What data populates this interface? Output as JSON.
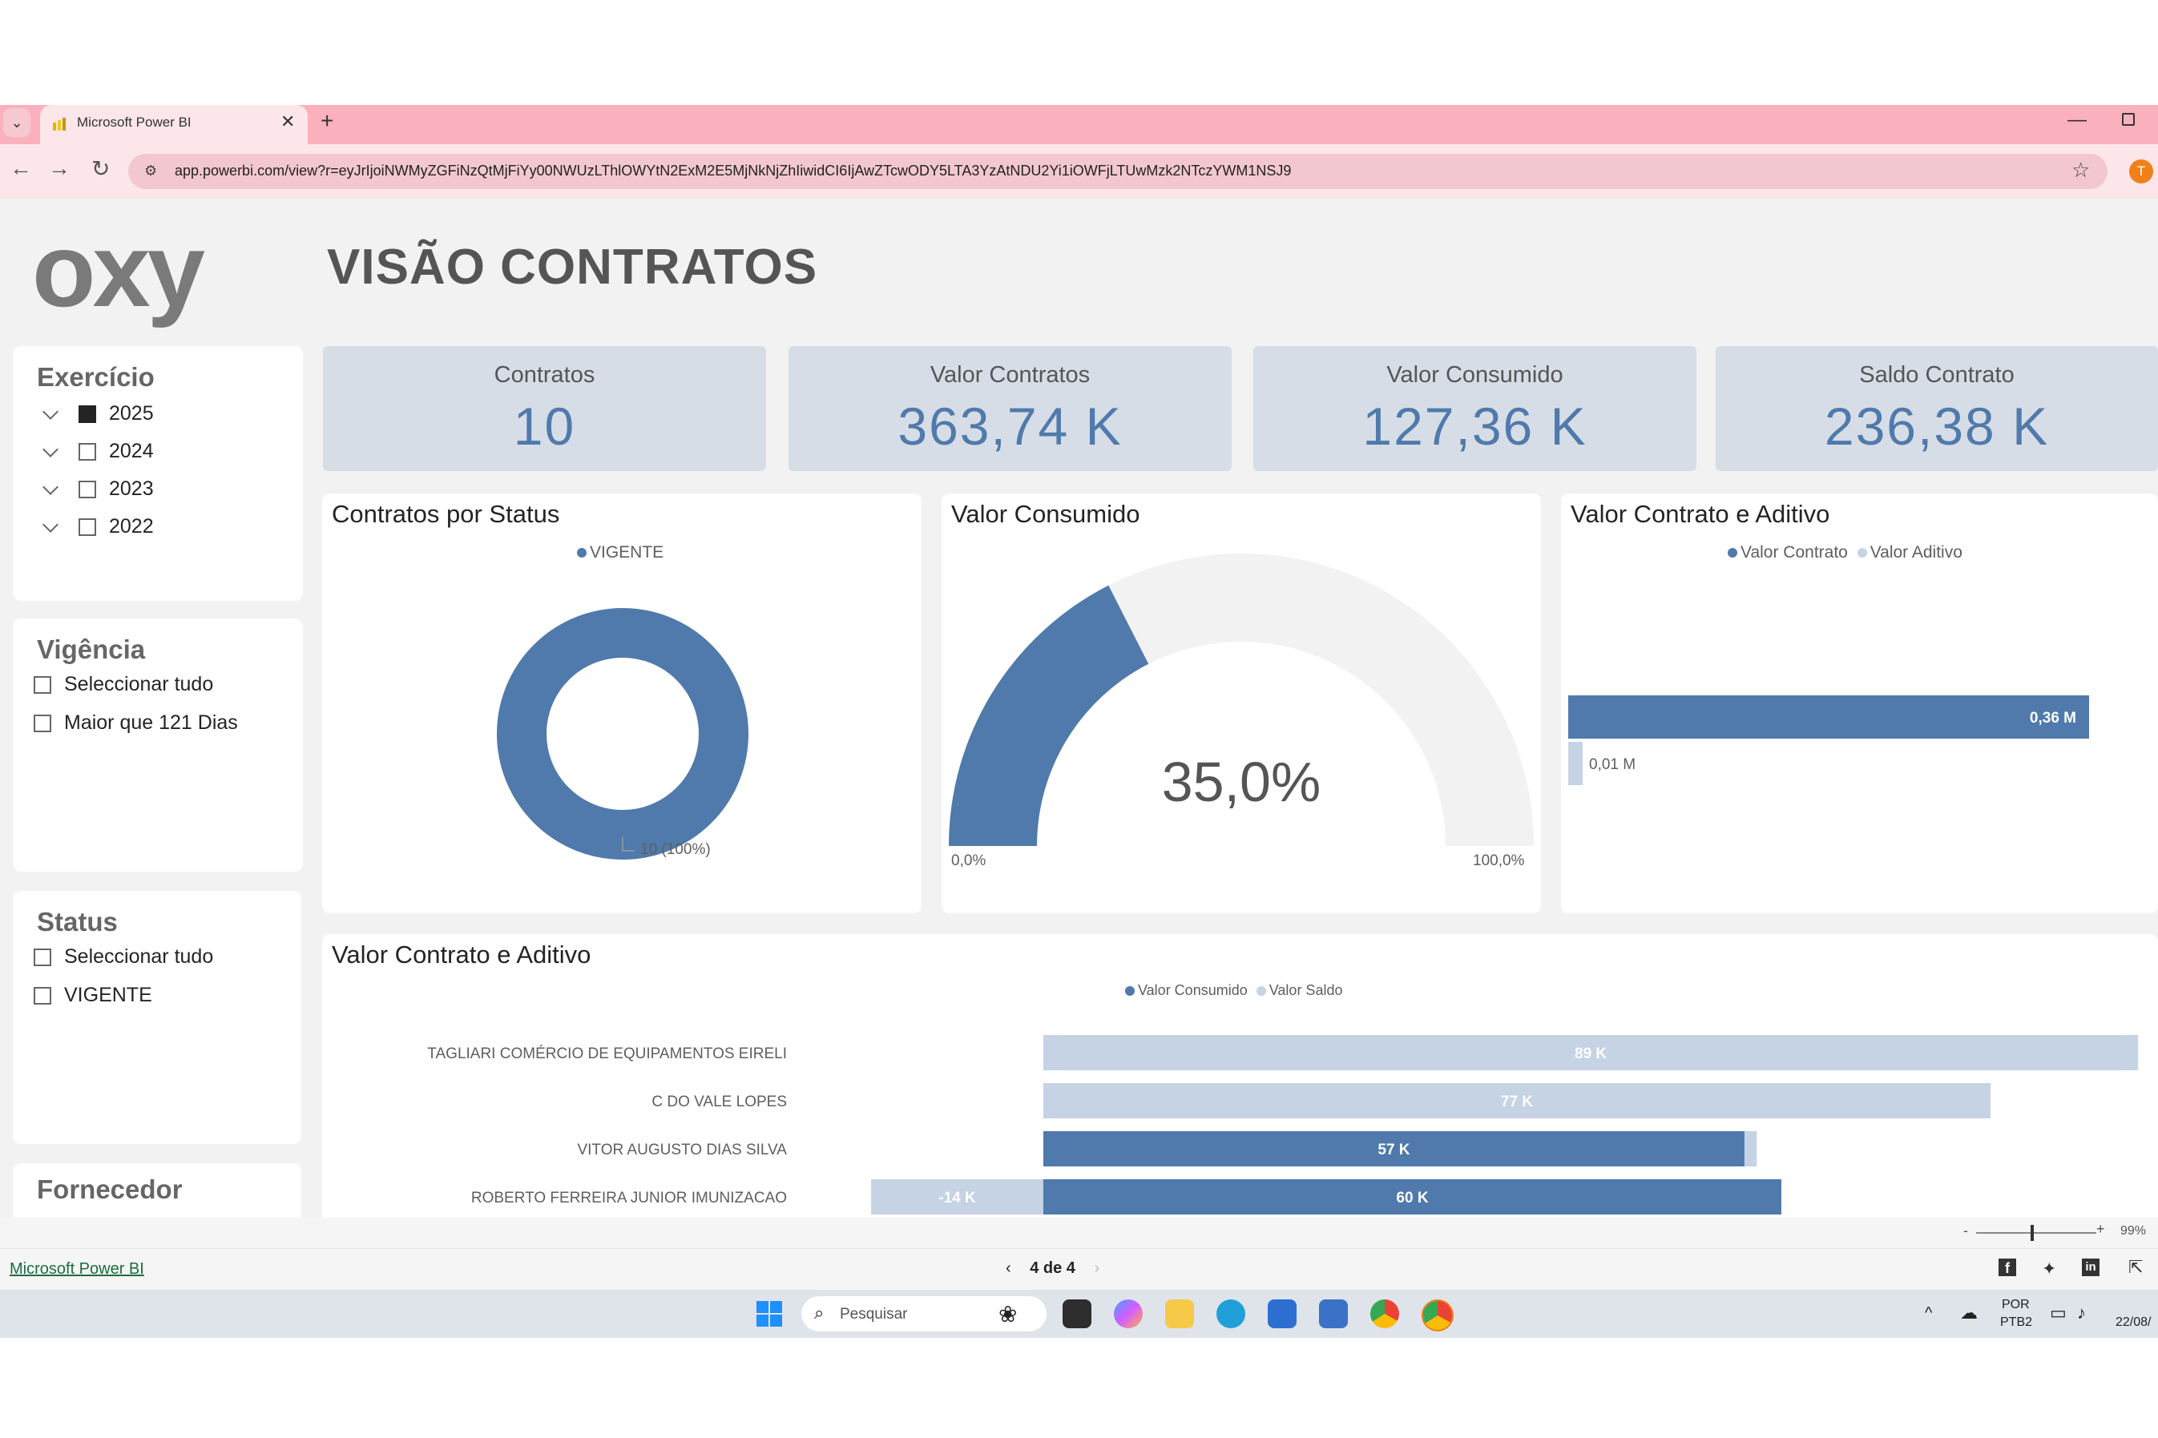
{
  "browser": {
    "tab_title": "Microsoft Power BI",
    "url": "app.powerbi.com/view?r=eyJrIjoiNWMyZGFiNzQtMjFiYy00NWUzLThlOWYtN2ExM2E5MjNkNjZhIiwidCI6IjAwZTcwODY5LTA3YzAtNDU2Yi1iOWFjLTUwMzk2NTczYWM1NSJ9",
    "profile_initial": "T"
  },
  "report": {
    "logo": "oxy",
    "title": "VISÃO CONTRATOS",
    "slicers": {
      "exercicio": {
        "title": "Exercício",
        "items": [
          {
            "label": "2025",
            "checked": true
          },
          {
            "label": "2024",
            "checked": false
          },
          {
            "label": "2023",
            "checked": false
          },
          {
            "label": "2022",
            "checked": false
          }
        ]
      },
      "vigencia": {
        "title": "Vigência",
        "items": [
          {
            "label": "Seleccionar tudo"
          },
          {
            "label": "Maior que 121 Dias"
          }
        ]
      },
      "status": {
        "title": "Status",
        "items": [
          {
            "label": "Seleccionar tudo"
          },
          {
            "label": "VIGENTE"
          }
        ]
      },
      "fornecedor": {
        "title": "Fornecedor"
      }
    },
    "kpis": [
      {
        "label": "Contratos",
        "value": "10"
      },
      {
        "label": "Valor Contratos",
        "value": "363,74 K"
      },
      {
        "label": "Valor Consumido",
        "value": "127,36 K"
      },
      {
        "label": "Saldo Contrato",
        "value": "236,38 K"
      }
    ],
    "colors": {
      "primary": "#4f7aab",
      "light": "#c5d3e4",
      "track": "#f2f2f2"
    }
  },
  "chart_data": [
    {
      "type": "pie",
      "title": "Contratos por Status",
      "legend": [
        "VIGENTE"
      ],
      "categories": [
        "VIGENTE"
      ],
      "values": [
        10
      ],
      "data_label": "10 (100%)"
    },
    {
      "type": "gauge",
      "title": "Valor Consumido",
      "value": 35.0,
      "value_label": "35,0%",
      "min_label": "0,0%",
      "max_label": "100,0%",
      "range": [
        0,
        100
      ]
    },
    {
      "type": "bar",
      "orientation": "horizontal",
      "title": "Valor Contrato e Aditivo",
      "legend": [
        "Valor Contrato",
        "Valor Aditivo"
      ],
      "series": [
        {
          "name": "Valor Contrato",
          "values": [
            0.36
          ],
          "label": "0,36 M"
        },
        {
          "name": "Valor Aditivo",
          "values": [
            0.01
          ],
          "label": "0,01 M"
        }
      ],
      "unit": "M"
    },
    {
      "type": "bar",
      "orientation": "horizontal",
      "stacked": true,
      "title": "Valor Contrato e Aditivo",
      "legend": [
        "Valor Consumido",
        "Valor Saldo"
      ],
      "categories": [
        "TAGLIARI COMÉRCIO DE EQUIPAMENTOS EIRELI",
        "C DO VALE LOPES",
        "VITOR AUGUSTO DIAS SILVA",
        "ROBERTO FERREIRA JUNIOR IMUNIZACAO"
      ],
      "series": [
        {
          "name": "Valor Consumido",
          "values": [
            0,
            0,
            57,
            60
          ],
          "labels": [
            "",
            "",
            "57 K",
            "60 K"
          ]
        },
        {
          "name": "Valor Saldo",
          "values": [
            89,
            77,
            1,
            -14
          ],
          "labels": [
            "89 K",
            "77 K",
            "",
            "-14 K"
          ]
        }
      ],
      "unit": "K"
    }
  ],
  "footer": {
    "link": "Microsoft Power BI",
    "page_indicator": "4 de 4",
    "zoom": "99%"
  },
  "taskbar": {
    "search_placeholder": "Pesquisar",
    "lang_1": "POR",
    "lang_2": "PTB2",
    "date": "22/08/"
  }
}
